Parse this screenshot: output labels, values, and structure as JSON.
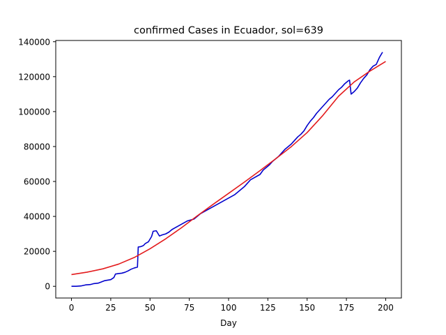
{
  "chart_data": {
    "type": "line",
    "title": "confirmed Cases in Ecuador, sol=639",
    "xlabel": "Day",
    "ylabel": "",
    "xlim": [
      -10,
      210
    ],
    "ylim": [
      -6700,
      140700
    ],
    "x_ticks": [
      0,
      25,
      50,
      75,
      100,
      125,
      150,
      175,
      200
    ],
    "x_tick_labels": [
      "0",
      "25",
      "50",
      "75",
      "100",
      "125",
      "150",
      "175",
      "200"
    ],
    "y_ticks": [
      0,
      20000,
      40000,
      60000,
      80000,
      100000,
      120000,
      140000
    ],
    "y_tick_labels": [
      "0",
      "20000",
      "40000",
      "60000",
      "80000",
      "100000",
      "120000",
      "140000"
    ],
    "grid": false,
    "legend": "none",
    "series": [
      {
        "color": "#0000cc",
        "points": [
          [
            0,
            0
          ],
          [
            3,
            0
          ],
          [
            6,
            200
          ],
          [
            9,
            800
          ],
          [
            12,
            1000
          ],
          [
            14,
            1500
          ],
          [
            17,
            1800
          ],
          [
            19,
            2500
          ],
          [
            21,
            3200
          ],
          [
            23,
            3500
          ],
          [
            25,
            3800
          ],
          [
            27,
            5000
          ],
          [
            28,
            7000
          ],
          [
            30,
            7300
          ],
          [
            32,
            7500
          ],
          [
            34,
            8000
          ],
          [
            36,
            8800
          ],
          [
            38,
            9800
          ],
          [
            40,
            10500
          ],
          [
            42,
            11000
          ],
          [
            42.5,
            22500
          ],
          [
            44,
            22700
          ],
          [
            45,
            23000
          ],
          [
            46,
            23500
          ],
          [
            47,
            24500
          ],
          [
            49,
            25500
          ],
          [
            51,
            28500
          ],
          [
            52,
            31500
          ],
          [
            54,
            31800
          ],
          [
            56,
            28800
          ],
          [
            58,
            29500
          ],
          [
            60,
            30000
          ],
          [
            62,
            31000
          ],
          [
            64,
            32500
          ],
          [
            66,
            33500
          ],
          [
            68,
            34500
          ],
          [
            70,
            35500
          ],
          [
            72,
            36500
          ],
          [
            74,
            37500
          ],
          [
            76,
            38000
          ],
          [
            78,
            38500
          ],
          [
            80,
            40000
          ],
          [
            82,
            41500
          ],
          [
            84,
            42500
          ],
          [
            86,
            43500
          ],
          [
            88,
            44500
          ],
          [
            90,
            45500
          ],
          [
            92,
            46500
          ],
          [
            94,
            47500
          ],
          [
            96,
            48500
          ],
          [
            98,
            49500
          ],
          [
            100,
            50500
          ],
          [
            102,
            51500
          ],
          [
            104,
            52500
          ],
          [
            106,
            54000
          ],
          [
            108,
            55500
          ],
          [
            110,
            57000
          ],
          [
            112,
            59000
          ],
          [
            114,
            61000
          ],
          [
            116,
            62000
          ],
          [
            118,
            63000
          ],
          [
            120,
            64000
          ],
          [
            122,
            66500
          ],
          [
            124,
            68000
          ],
          [
            126,
            69500
          ],
          [
            128,
            71500
          ],
          [
            130,
            73000
          ],
          [
            132,
            74500
          ],
          [
            134,
            76500
          ],
          [
            136,
            78500
          ],
          [
            138,
            80000
          ],
          [
            140,
            81500
          ],
          [
            142,
            83500
          ],
          [
            144,
            85500
          ],
          [
            146,
            87000
          ],
          [
            148,
            89000
          ],
          [
            150,
            92000
          ],
          [
            152,
            94500
          ],
          [
            154,
            96500
          ],
          [
            156,
            99000
          ],
          [
            158,
            101000
          ],
          [
            160,
            103000
          ],
          [
            162,
            105000
          ],
          [
            164,
            107000
          ],
          [
            166,
            108500
          ],
          [
            168,
            110500
          ],
          [
            170,
            112500
          ],
          [
            172,
            114000
          ],
          [
            174,
            116000
          ],
          [
            176,
            117500
          ],
          [
            177,
            118000
          ],
          [
            178,
            110000
          ],
          [
            180,
            111500
          ],
          [
            182,
            113500
          ],
          [
            184,
            116500
          ],
          [
            186,
            119000
          ],
          [
            188,
            121000
          ],
          [
            190,
            124000
          ],
          [
            192,
            126000
          ],
          [
            194,
            127000
          ],
          [
            196,
            131000
          ],
          [
            198,
            134000
          ]
        ]
      },
      {
        "color": "#e31a1c",
        "points": [
          [
            0,
            6700
          ],
          [
            10,
            8100
          ],
          [
            20,
            10000
          ],
          [
            30,
            12700
          ],
          [
            40,
            16500
          ],
          [
            50,
            21500
          ],
          [
            60,
            27200
          ],
          [
            70,
            33500
          ],
          [
            80,
            40300
          ],
          [
            90,
            46800
          ],
          [
            100,
            53200
          ],
          [
            110,
            59600
          ],
          [
            120,
            66200
          ],
          [
            130,
            73000
          ],
          [
            140,
            80000
          ],
          [
            150,
            88000
          ],
          [
            160,
            97800
          ],
          [
            170,
            108800
          ],
          [
            180,
            117000
          ],
          [
            190,
            123200
          ],
          [
            200,
            128700
          ]
        ]
      }
    ]
  }
}
